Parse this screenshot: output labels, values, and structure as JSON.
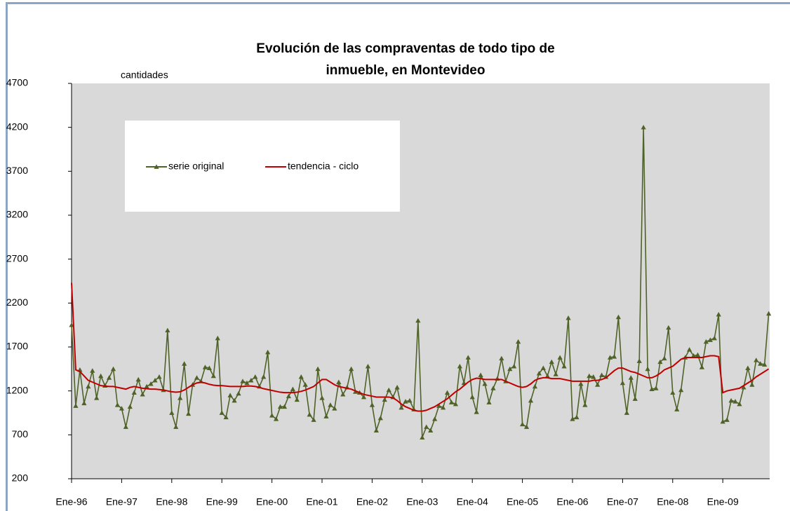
{
  "chart_data": {
    "type": "line",
    "title": [
      "Evolución de las compraventas de todo tipo de",
      "inmueble, en Montevideo"
    ],
    "ylabel": "cantidades",
    "categories": [
      "Ene-96",
      null,
      null,
      null,
      null,
      null,
      null,
      null,
      null,
      null,
      null,
      null,
      "Ene-97",
      null,
      null,
      null,
      null,
      null,
      null,
      null,
      null,
      null,
      null,
      null,
      "Ene-98",
      null,
      null,
      null,
      null,
      null,
      null,
      null,
      null,
      null,
      null,
      null,
      "Ene-99",
      null,
      null,
      null,
      null,
      null,
      null,
      null,
      null,
      null,
      null,
      null,
      "Ene-00",
      null,
      null,
      null,
      null,
      null,
      null,
      null,
      null,
      null,
      null,
      null,
      "Ene-01",
      null,
      null,
      null,
      null,
      null,
      null,
      null,
      null,
      null,
      null,
      null,
      "Ene-02",
      null,
      null,
      null,
      null,
      null,
      null,
      null,
      null,
      null,
      null,
      null,
      "Ene-03",
      null,
      null,
      null,
      null,
      null,
      null,
      null,
      null,
      null,
      null,
      null,
      "Ene-04",
      null,
      null,
      null,
      null,
      null,
      null,
      null,
      null,
      null,
      null,
      null,
      "Ene-05",
      null,
      null,
      null,
      null,
      null,
      null,
      null,
      null,
      null,
      null,
      null,
      "Ene-06",
      null,
      null,
      null,
      null,
      null,
      null,
      null,
      null,
      null,
      null,
      null,
      "Ene-07",
      null,
      null,
      null,
      null,
      null,
      null,
      null,
      null,
      null,
      null,
      null,
      "Ene-08",
      null,
      null,
      null,
      null,
      null,
      null,
      null,
      null,
      null,
      null,
      null,
      "Ene-09",
      null,
      null,
      null,
      null,
      null,
      null,
      null,
      null,
      null,
      null,
      null
    ],
    "series": [
      {
        "name": "serie original",
        "color": "#4f6228",
        "marker": "triangle",
        "values": [
          1950,
          1030,
          1440,
          1060,
          1250,
          1430,
          1120,
          1370,
          1260,
          1350,
          1450,
          1040,
          1000,
          790,
          1020,
          1180,
          1330,
          1160,
          1250,
          1280,
          1320,
          1360,
          1210,
          1890,
          950,
          790,
          1120,
          1510,
          940,
          1270,
          1350,
          1310,
          1470,
          1460,
          1370,
          1800,
          950,
          900,
          1150,
          1090,
          1170,
          1310,
          1290,
          1320,
          1360,
          1250,
          1360,
          1640,
          920,
          880,
          1020,
          1020,
          1140,
          1220,
          1100,
          1360,
          1270,
          930,
          870,
          1450,
          1120,
          910,
          1040,
          1000,
          1300,
          1160,
          1240,
          1450,
          1190,
          1180,
          1130,
          1480,
          1040,
          750,
          890,
          1100,
          1210,
          1130,
          1240,
          1010,
          1080,
          1090,
          990,
          2000,
          670,
          790,
          750,
          880,
          1030,
          1010,
          1180,
          1070,
          1050,
          1480,
          1290,
          1580,
          1130,
          960,
          1380,
          1280,
          1070,
          1230,
          1340,
          1570,
          1310,
          1450,
          1480,
          1760,
          820,
          790,
          1090,
          1250,
          1400,
          1460,
          1370,
          1530,
          1390,
          1580,
          1480,
          2030,
          880,
          900,
          1280,
          1040,
          1370,
          1360,
          1270,
          1380,
          1360,
          1580,
          1590,
          2040,
          1290,
          950,
          1350,
          1110,
          1540,
          4200,
          1450,
          1220,
          1230,
          1530,
          1570,
          1920,
          1180,
          990,
          1210,
          1580,
          1670,
          1600,
          1610,
          1470,
          1760,
          1780,
          1800,
          2070,
          850,
          870,
          1090,
          1080,
          1050,
          1240,
          1460,
          1270,
          1550,
          1510,
          1500,
          2080
        ]
      },
      {
        "name": "tendencia - ciclo",
        "color": "#c00000",
        "marker": "none",
        "values": [
          2430,
          1440,
          1420,
          1370,
          1320,
          1300,
          1280,
          1260,
          1255,
          1250,
          1250,
          1240,
          1230,
          1220,
          1240,
          1250,
          1240,
          1230,
          1225,
          1220,
          1220,
          1215,
          1210,
          1200,
          1190,
          1185,
          1190,
          1210,
          1240,
          1270,
          1290,
          1300,
          1290,
          1275,
          1265,
          1260,
          1260,
          1255,
          1250,
          1250,
          1250,
          1250,
          1255,
          1255,
          1250,
          1240,
          1225,
          1215,
          1205,
          1195,
          1185,
          1180,
          1180,
          1180,
          1185,
          1195,
          1210,
          1230,
          1250,
          1290,
          1330,
          1330,
          1300,
          1270,
          1250,
          1240,
          1230,
          1220,
          1200,
          1180,
          1160,
          1150,
          1140,
          1130,
          1130,
          1130,
          1130,
          1120,
          1090,
          1050,
          1020,
          1000,
          980,
          970,
          970,
          980,
          1000,
          1020,
          1050,
          1080,
          1110,
          1150,
          1190,
          1220,
          1260,
          1300,
          1330,
          1345,
          1340,
          1330,
          1330,
          1330,
          1330,
          1330,
          1310,
          1290,
          1270,
          1250,
          1240,
          1250,
          1280,
          1320,
          1340,
          1350,
          1350,
          1340,
          1340,
          1340,
          1330,
          1320,
          1310,
          1310,
          1310,
          1310,
          1310,
          1320,
          1320,
          1330,
          1350,
          1390,
          1430,
          1460,
          1460,
          1440,
          1420,
          1410,
          1390,
          1370,
          1350,
          1350,
          1370,
          1400,
          1440,
          1460,
          1480,
          1520,
          1560,
          1580,
          1580,
          1580,
          1580,
          1580,
          1590,
          1600,
          1600,
          1590,
          1180,
          1200,
          1210,
          1220,
          1230,
          1260,
          1290,
          1320,
          1360,
          1390,
          1420,
          1450
        ]
      }
    ],
    "ylim": [
      200,
      4700
    ],
    "yticks": [
      200,
      700,
      1200,
      1700,
      2200,
      2700,
      3200,
      3700,
      4200,
      4700
    ],
    "grid": false,
    "plot_background": "#d9d9d9",
    "legend_loc": "upper left"
  }
}
